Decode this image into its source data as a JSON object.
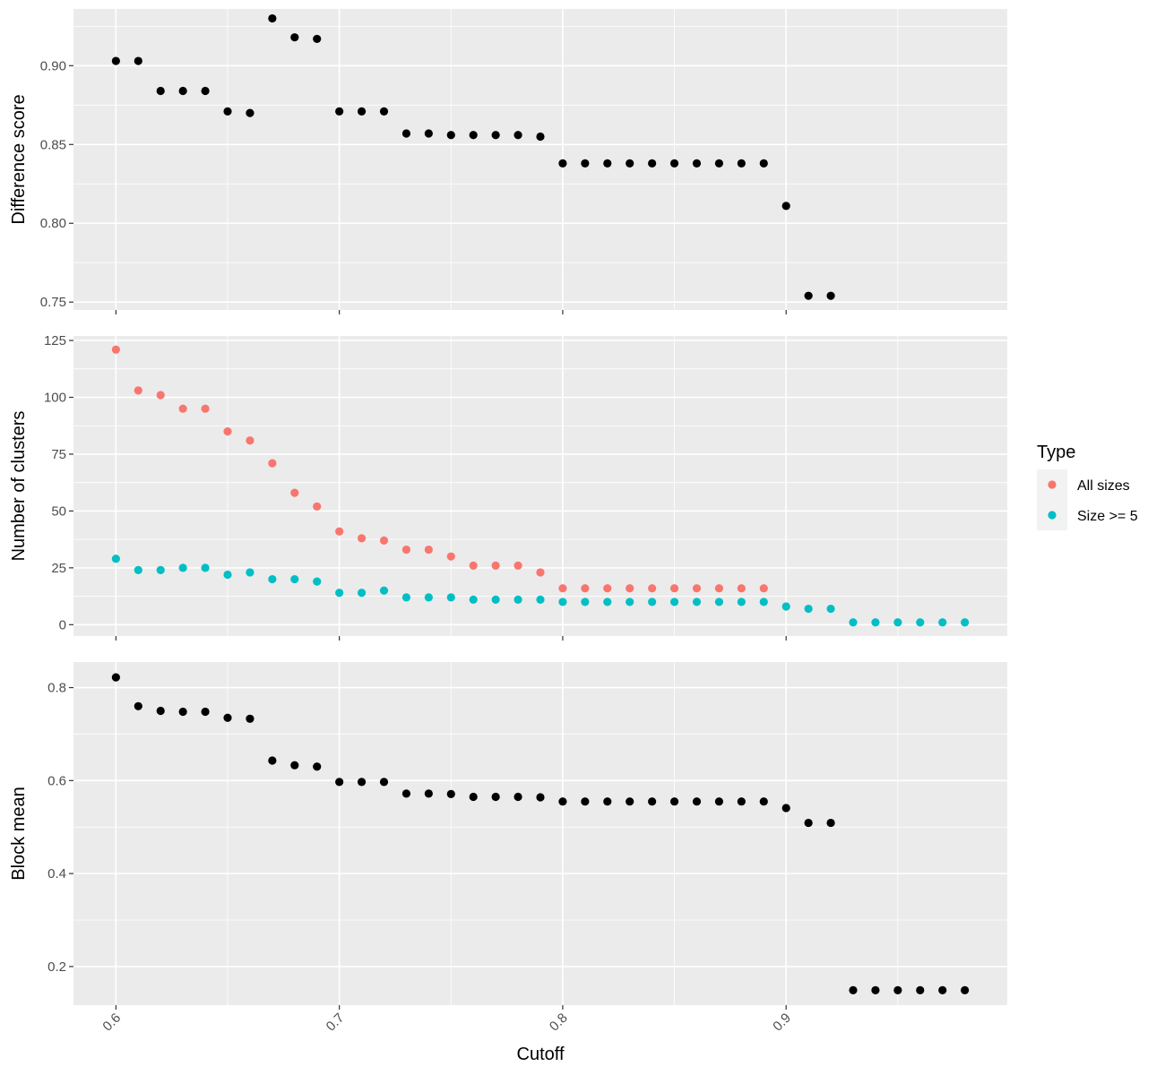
{
  "chart_data": {
    "type": "scatter",
    "layout": "faceted-vertical",
    "grid": true,
    "shared_x": {
      "label": "Cutoff",
      "range": [
        0.581,
        0.999
      ],
      "ticks": [
        0.6,
        0.7,
        0.8,
        0.9
      ],
      "tick_labels": [
        "0.6",
        "0.7",
        "0.8",
        "0.9"
      ],
      "tick_label_rotation": -45
    },
    "legend": {
      "title": "Type",
      "placement": "right",
      "entries": [
        {
          "label": "All sizes",
          "color": "#F8766D"
        },
        {
          "label": "Size >= 5",
          "color": "#00BFC4"
        }
      ]
    },
    "panels": [
      {
        "ylabel": "Difference score",
        "ylim": [
          0.745,
          0.936
        ],
        "yticks": [
          0.75,
          0.8,
          0.85,
          0.9
        ],
        "ytick_labels": [
          "0.75",
          "0.80",
          "0.85",
          "0.90"
        ],
        "series": [
          {
            "color": "#000000",
            "x": [
              0.6,
              0.61,
              0.62,
              0.63,
              0.64,
              0.65,
              0.66,
              0.67,
              0.68,
              0.69,
              0.7,
              0.71,
              0.72,
              0.73,
              0.74,
              0.75,
              0.76,
              0.77,
              0.78,
              0.79,
              0.8,
              0.81,
              0.82,
              0.83,
              0.84,
              0.85,
              0.86,
              0.87,
              0.88,
              0.89,
              0.9,
              0.91,
              0.92
            ],
            "y": [
              0.903,
              0.903,
              0.884,
              0.884,
              0.884,
              0.871,
              0.87,
              0.93,
              0.918,
              0.917,
              0.871,
              0.871,
              0.871,
              0.857,
              0.857,
              0.856,
              0.856,
              0.856,
              0.856,
              0.855,
              0.838,
              0.838,
              0.838,
              0.838,
              0.838,
              0.838,
              0.838,
              0.838,
              0.838,
              0.838,
              0.811,
              0.754,
              0.754
            ]
          }
        ]
      },
      {
        "ylabel": "Number of clusters",
        "ylim": [
          -5,
          127
        ],
        "yticks": [
          0,
          25,
          50,
          75,
          100,
          125
        ],
        "ytick_labels": [
          "0",
          "25",
          "50",
          "75",
          "100",
          "125"
        ],
        "series": [
          {
            "name": "All sizes",
            "color": "#F8766D",
            "x": [
              0.6,
              0.61,
              0.62,
              0.63,
              0.64,
              0.65,
              0.66,
              0.67,
              0.68,
              0.69,
              0.7,
              0.71,
              0.72,
              0.73,
              0.74,
              0.75,
              0.76,
              0.77,
              0.78,
              0.79,
              0.8,
              0.81,
              0.82,
              0.83,
              0.84,
              0.85,
              0.86,
              0.87,
              0.88,
              0.89
            ],
            "y": [
              121,
              103,
              101,
              95,
              95,
              85,
              81,
              71,
              58,
              52,
              41,
              38,
              37,
              33,
              33,
              30,
              26,
              26,
              26,
              23,
              16,
              16,
              16,
              16,
              16,
              16,
              16,
              16,
              16,
              16
            ]
          },
          {
            "name": "Size >= 5",
            "color": "#00BFC4",
            "x": [
              0.6,
              0.61,
              0.62,
              0.63,
              0.64,
              0.65,
              0.66,
              0.67,
              0.68,
              0.69,
              0.7,
              0.71,
              0.72,
              0.73,
              0.74,
              0.75,
              0.76,
              0.77,
              0.78,
              0.79,
              0.8,
              0.81,
              0.82,
              0.83,
              0.84,
              0.85,
              0.86,
              0.87,
              0.88,
              0.89,
              0.9,
              0.91,
              0.92,
              0.93,
              0.94,
              0.95,
              0.96,
              0.97,
              0.98
            ],
            "y": [
              29,
              24,
              24,
              25,
              25,
              22,
              23,
              20,
              20,
              19,
              14,
              14,
              15,
              12,
              12,
              12,
              11,
              11,
              11,
              11,
              10,
              10,
              10,
              10,
              10,
              10,
              10,
              10,
              10,
              10,
              8,
              7,
              7,
              1,
              1,
              1,
              1,
              1,
              1
            ]
          }
        ]
      },
      {
        "ylabel": "Block mean",
        "ylim": [
          0.117,
          0.855
        ],
        "yticks": [
          0.2,
          0.4,
          0.6,
          0.8
        ],
        "ytick_labels": [
          "0.2",
          "0.4",
          "0.6",
          "0.8"
        ],
        "series": [
          {
            "color": "#000000",
            "x": [
              0.6,
              0.61,
              0.62,
              0.63,
              0.64,
              0.65,
              0.66,
              0.67,
              0.68,
              0.69,
              0.7,
              0.71,
              0.72,
              0.73,
              0.74,
              0.75,
              0.76,
              0.77,
              0.78,
              0.79,
              0.8,
              0.81,
              0.82,
              0.83,
              0.84,
              0.85,
              0.86,
              0.87,
              0.88,
              0.89,
              0.9,
              0.91,
              0.92,
              0.93,
              0.94,
              0.95,
              0.96,
              0.97,
              0.98
            ],
            "y": [
              0.822,
              0.76,
              0.75,
              0.748,
              0.748,
              0.735,
              0.733,
              0.643,
              0.633,
              0.63,
              0.597,
              0.597,
              0.597,
              0.572,
              0.572,
              0.571,
              0.565,
              0.565,
              0.565,
              0.564,
              0.555,
              0.555,
              0.555,
              0.555,
              0.555,
              0.555,
              0.555,
              0.555,
              0.555,
              0.555,
              0.541,
              0.509,
              0.509,
              0.149,
              0.149,
              0.149,
              0.149,
              0.149,
              0.149
            ]
          }
        ]
      }
    ]
  }
}
